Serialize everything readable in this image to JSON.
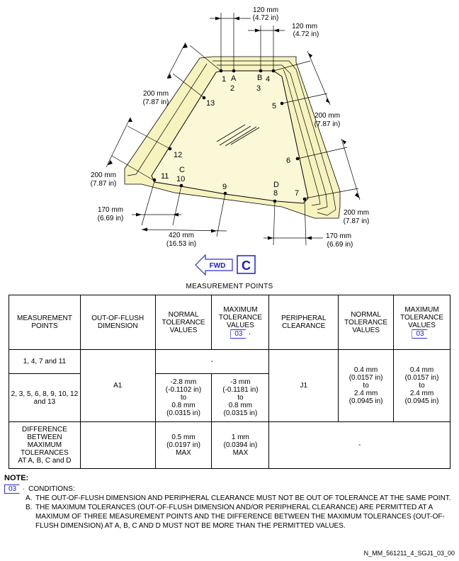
{
  "diagram": {
    "points": {
      "p1": "1",
      "pA": "A",
      "p2": "2",
      "pB": "B",
      "p4": "4",
      "p3": "3",
      "p5": "5",
      "p13": "13",
      "p12": "12",
      "p6": "6",
      "p11": "11",
      "pC": "C",
      "p10": "10",
      "p9": "9",
      "pD": "D",
      "p8": "8",
      "p7": "7"
    },
    "dims": {
      "top_mm": "120 mm",
      "top_in": "(4.72 in)",
      "topr_mm": "120 mm",
      "topr_in": "(4.72 in)",
      "ul_mm": "200 mm",
      "ul_in": "(7.87 in)",
      "ur_mm": "200 mm",
      "ur_in": "(7.87 in)",
      "ml_mm": "200 mm",
      "ml_in": "(7.87 in)",
      "lr_mm": "200 mm",
      "lr_in": "(7.87 in)",
      "ll_mm": "170 mm",
      "ll_in": "(6.69 in)",
      "bc_mm": "420 mm",
      "bc_in": "(16.53 in)",
      "br_mm": "170 mm",
      "br_in": "(6.69 in)"
    },
    "fwd_label": "FWD",
    "view_letter": "C"
  },
  "table": {
    "title": "MEASUREMENT POINTS",
    "headers": {
      "measurement_points": "MEASUREMENT POINTS",
      "out_of_flush": "OUT-OF-FLUSH DIMENSION",
      "normal_tol_1": "NORMAL TOLERANCE VALUES",
      "max_tol_1": "MAXIMUM TOLERANCE VALUES",
      "peripheral": "PERIPHERAL CLEARANCE",
      "normal_tol_2": "NORMAL TOLERANCE VALUES",
      "max_tol_2": "MAXIMUM TOLERANCE VALUES",
      "ref": "03"
    },
    "rows": {
      "r1_points": "1, 4, 7 and 11",
      "r1_dash": "-",
      "r2_points": "2, 3, 5, 6, 8, 9, 10, 12 and 13",
      "flush_value": "A1",
      "r2_normal": [
        "-2.8 mm",
        "(-0.1102 in)",
        "to",
        "0.8 mm",
        "(0.0315 in)"
      ],
      "r2_max": [
        "-3 mm",
        "(-0.1181 in)",
        "to",
        "0.8 mm",
        "(0.0315 in)"
      ],
      "peripheral_value": "J1",
      "per_normal": [
        "0.4 mm",
        "(0.0157 in)",
        "to",
        "2.4 mm",
        "(0.0945 in)"
      ],
      "per_max": [
        "0.4 mm",
        "(0.0157 in)",
        "to",
        "2.4 mm",
        "(0.0945 in)"
      ],
      "r3_points": [
        "DIFFERENCE",
        "BETWEEN",
        "MAXIMUM",
        "TOLERANCES",
        "AT A, B, C and D"
      ],
      "r3_normal": [
        "0.5 mm",
        "(0.0197 in)",
        "MAX"
      ],
      "r3_max": [
        "1 mm",
        "(0.0394 in)",
        "MAX"
      ],
      "r3_dash": "-"
    }
  },
  "notes": {
    "heading": "NOTE:",
    "ref": "03",
    "conditions": "CONDITIONS:",
    "items": [
      {
        "letter": "A.",
        "text": "THE OUT-OF-FLUSH DIMENSION AND PERIPHERAL CLEARANCE MUST NOT BE OUT OF TOLERANCE AT THE SAME POINT."
      },
      {
        "letter": "B.",
        "text": "THE MAXIMUM TOLERANCES (OUT-OF-FLUSH DIMENSION AND/OR PERIPHERAL CLEARANCE) ARE PERMITTED AT A MAXIMUM OF THREE MEASUREMENT POINTS AND THE DIFFERENCE BETWEEN THE MAXIMUM TOLERANCES (OUT-OF-FLUSH DIMENSION) AT A, B, C AND D MUST NOT BE MORE THAN THE PERMITTED VALUES."
      }
    ]
  },
  "footer": {
    "figure_ref": "N_MM_561211_4_SGJ1_03_00"
  }
}
